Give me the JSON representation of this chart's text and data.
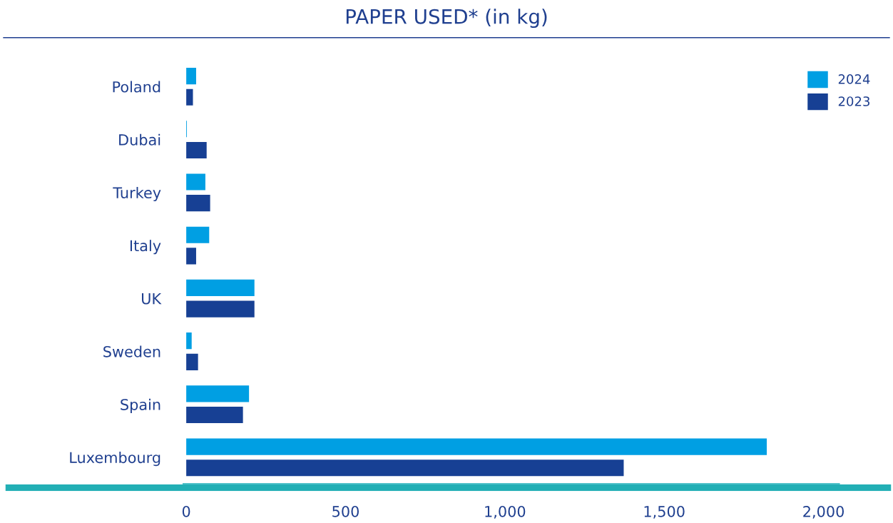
{
  "chart_data": {
    "type": "bar",
    "orientation": "horizontal",
    "title": "PAPER USED* (in kg)",
    "categories": [
      "Poland",
      "Dubai",
      "Turkey",
      "Italy",
      "UK",
      "Sweden",
      "Spain",
      "Luxembourg"
    ],
    "series": [
      {
        "name": "2024",
        "color": "#009fe3",
        "values": [
          31,
          2,
          60,
          72,
          214,
          17,
          197,
          1822
        ]
      },
      {
        "name": "2023",
        "color": "#174094",
        "values": [
          21,
          64,
          75,
          31,
          214,
          37,
          178,
          1373
        ]
      }
    ],
    "xlim": [
      -10,
      2050
    ],
    "xticks": [
      0,
      {
        "value": 500,
        "label": "500"
      },
      {
        "value": 1000,
        "label": "1,000"
      },
      {
        "value": 1500,
        "label": "1,500"
      },
      {
        "value": 2000,
        "label": "2,000"
      }
    ],
    "grid": false,
    "legend": "top right"
  }
}
